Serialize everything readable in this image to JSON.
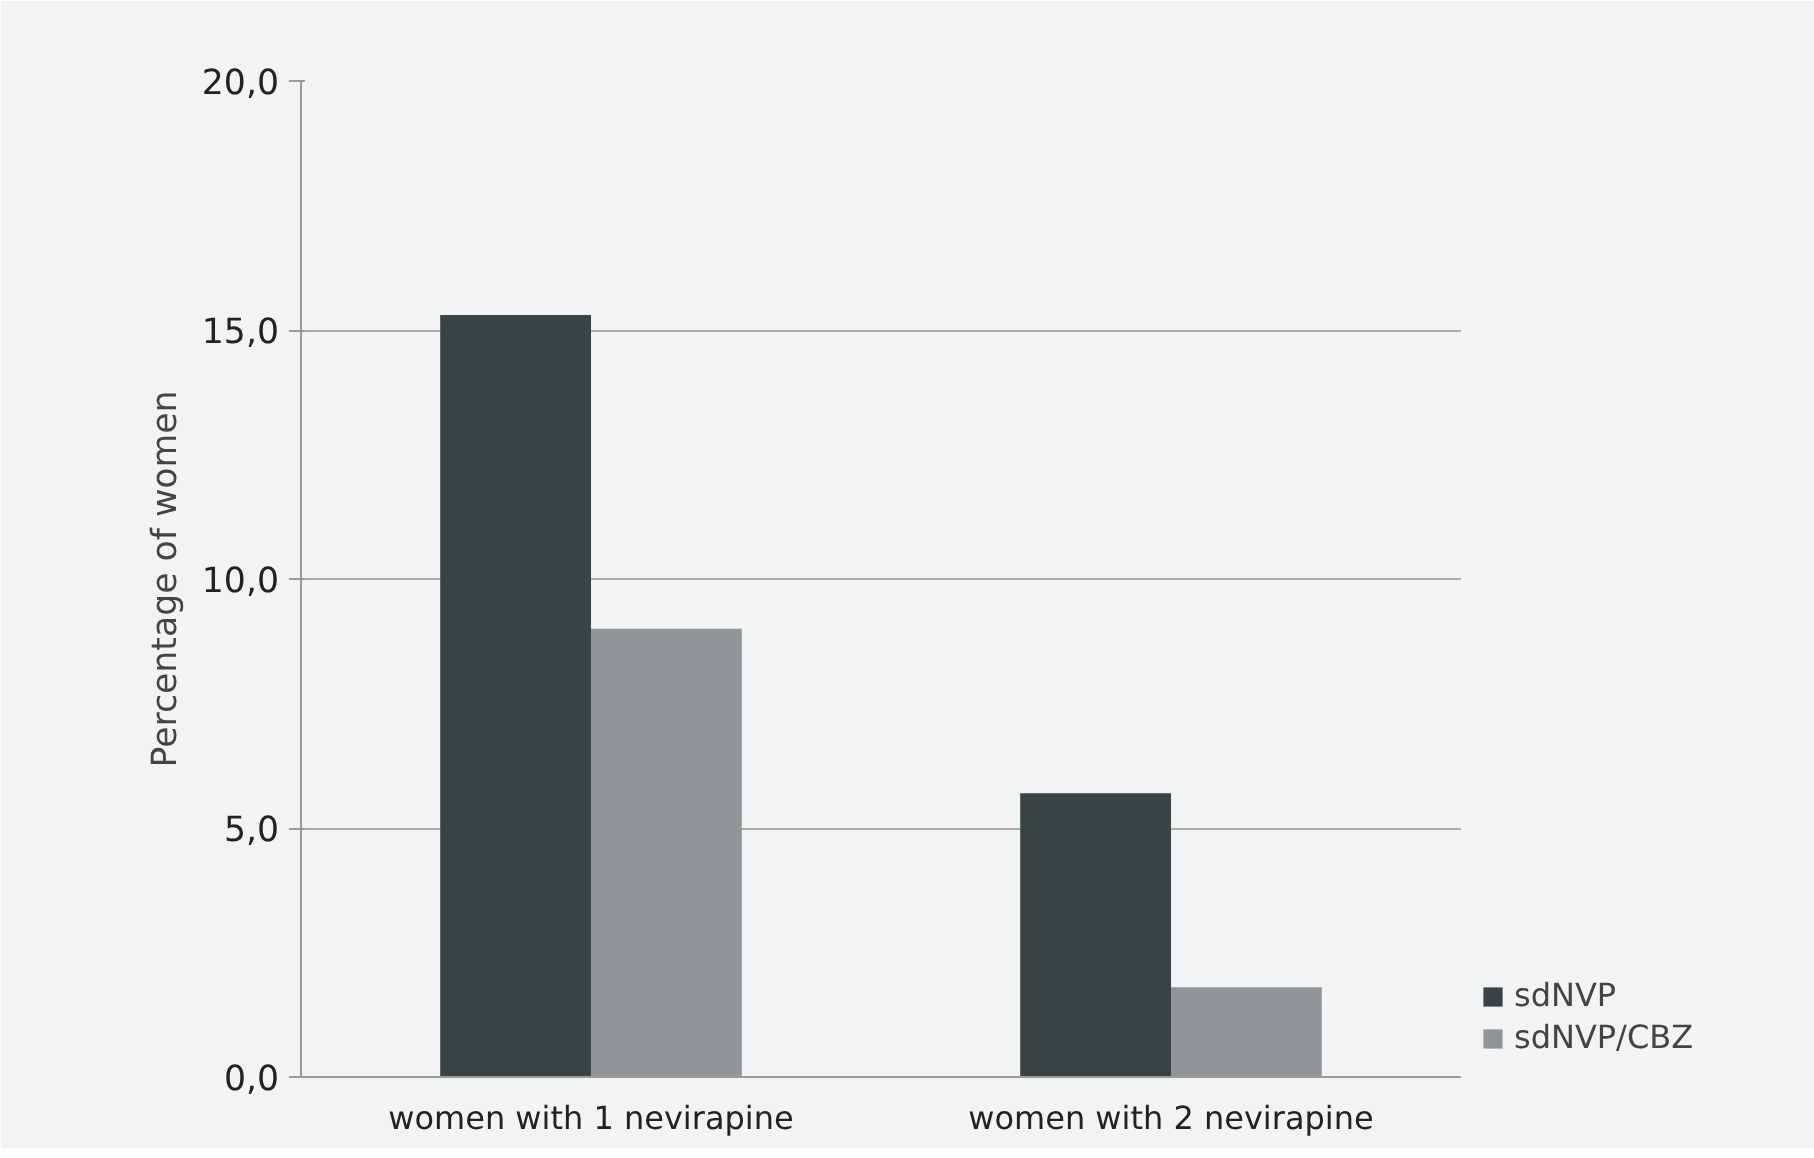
{
  "chart_data": {
    "type": "bar",
    "ylabel": "Percentage of women",
    "categories": [
      "women with 1 nevirapine",
      "women with 2 nevirapine"
    ],
    "series": [
      {
        "name": "sdNVP",
        "color": "#3a4444",
        "values": [
          15.3,
          5.7
        ]
      },
      {
        "name": "sdNVP/CBZ",
        "color": "#929597",
        "values": [
          9.0,
          1.8
        ]
      }
    ],
    "ylim": [
      0,
      20
    ],
    "yticks": [
      {
        "value": 0,
        "label": "0,0"
      },
      {
        "value": 5,
        "label": "5,0"
      },
      {
        "value": 10,
        "label": "10,0"
      },
      {
        "value": 15,
        "label": "15,0"
      },
      {
        "value": 20,
        "label": "20,0"
      }
    ],
    "grid": "y",
    "legend": "bottom right"
  }
}
